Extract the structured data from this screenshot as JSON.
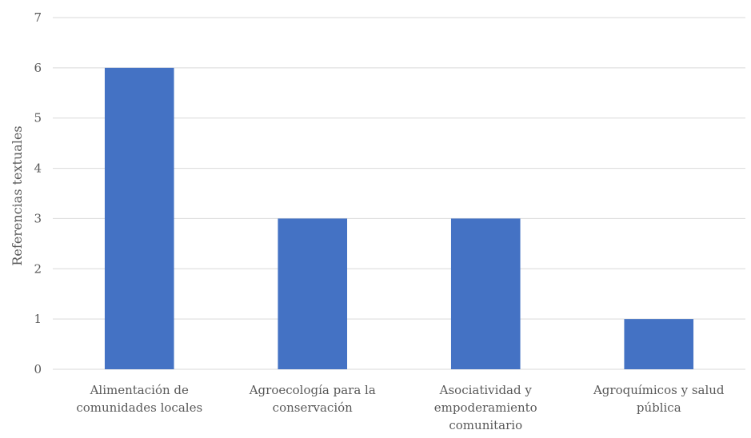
{
  "chart_data": {
    "type": "bar",
    "categories": [
      [
        "Alimentación de",
        "comunidades locales"
      ],
      [
        "Agroecología para la",
        "conservación"
      ],
      [
        "Asociatividad y",
        "empoderamiento",
        "comunitario"
      ],
      [
        "Agroquímicos y salud",
        "pública"
      ]
    ],
    "values": [
      6,
      3,
      3,
      1
    ],
    "ylabel": "Referencias textuales",
    "ylim": [
      0,
      7
    ],
    "yticks": [
      0,
      1,
      2,
      3,
      4,
      5,
      6,
      7
    ],
    "grid": true,
    "legend": "none",
    "bar_color": "#4472c4"
  }
}
